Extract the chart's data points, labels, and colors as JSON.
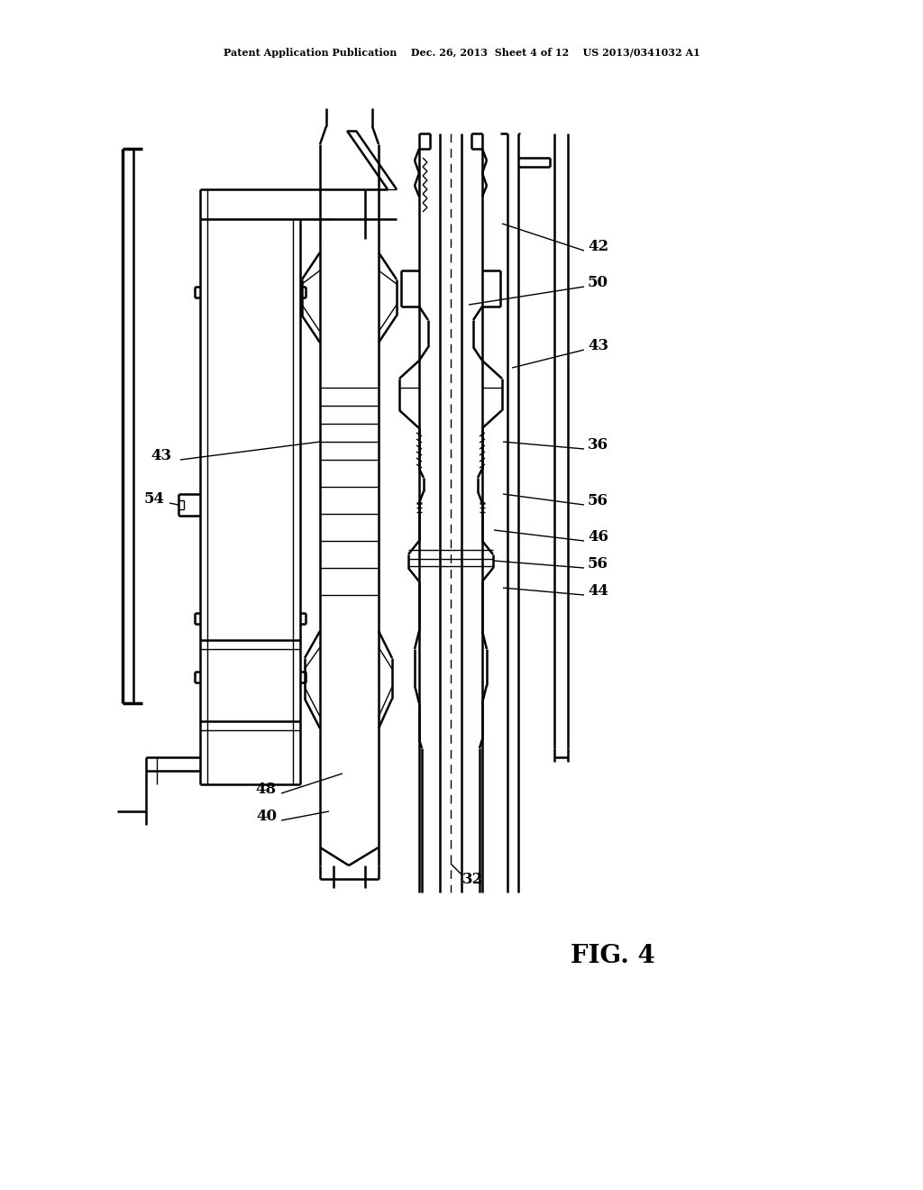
{
  "header": "Patent Application Publication    Dec. 26, 2013  Sheet 4 of 12    US 2013/0341032 A1",
  "fig_label": "FIG. 4",
  "bg": "#ffffff",
  "lc": "#000000"
}
